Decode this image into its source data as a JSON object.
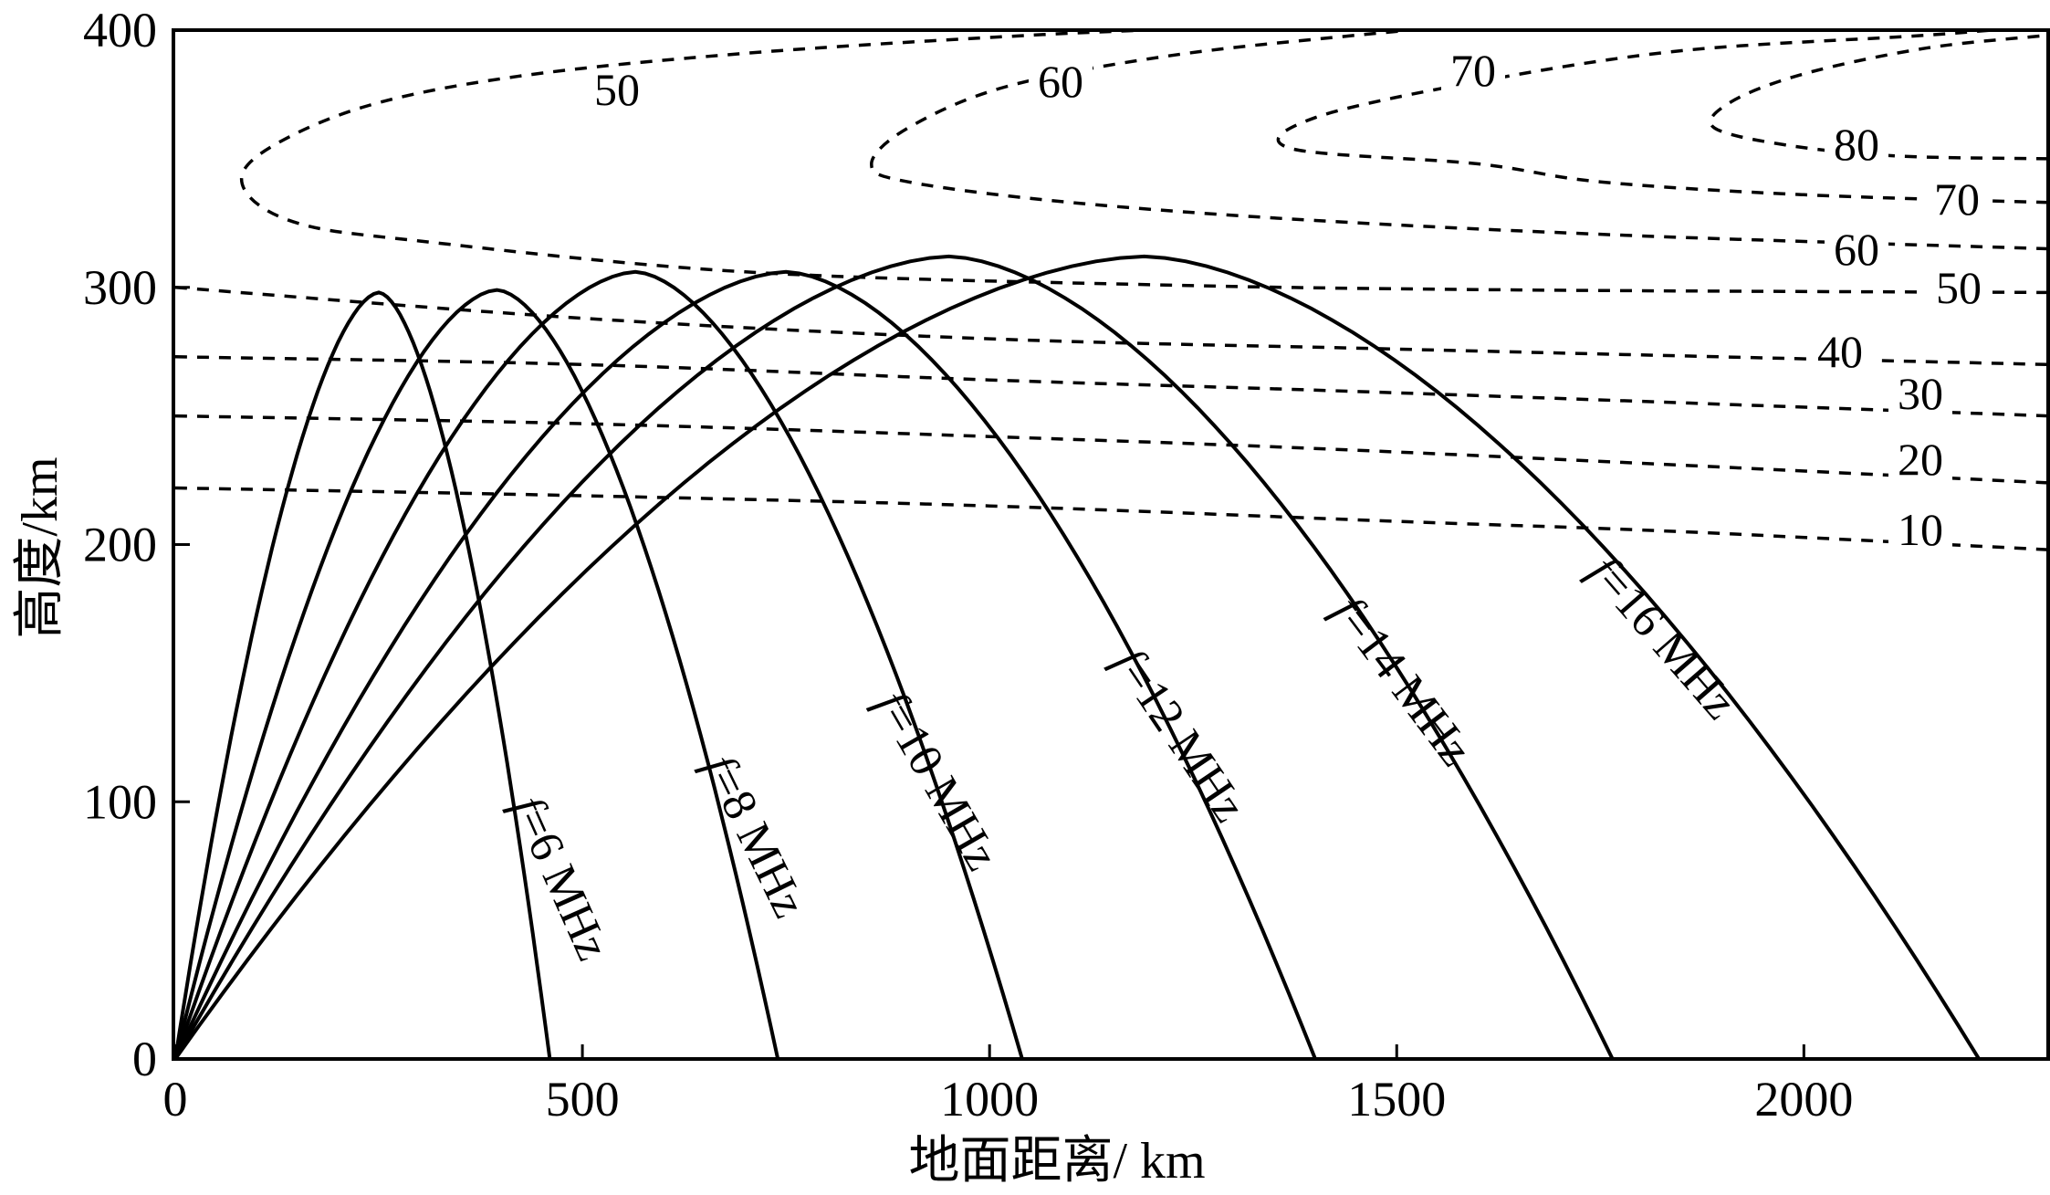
{
  "chart_data": {
    "type": "line",
    "xlabel": "地面距离/ km",
    "ylabel": "高度/km",
    "xlim": [
      0,
      2300
    ],
    "ylim": [
      0,
      400
    ],
    "x_ticks": [
      0,
      500,
      1000,
      1500,
      2000
    ],
    "y_ticks": [
      0,
      100,
      200,
      300,
      400
    ],
    "ray_series": [
      {
        "name": "f=6 MHz",
        "f_symbol": "f",
        "f_value": "=6 MHz",
        "peak_x": 250,
        "peak_height": 298,
        "landing_x": 460
      },
      {
        "name": "f=8 MHz",
        "f_symbol": "f",
        "f_value": "=8 MHz",
        "peak_x": 395,
        "peak_height": 299,
        "landing_x": 740
      },
      {
        "name": "f=10 MHz",
        "f_symbol": "f",
        "f_value": "=10 MHz",
        "peak_x": 565,
        "peak_height": 306,
        "landing_x": 1040
      },
      {
        "name": "f=12 MHz",
        "f_symbol": "f",
        "f_value": "=12 MHz",
        "peak_x": 750,
        "peak_height": 306,
        "landing_x": 1400
      },
      {
        "name": "f=14 MHz",
        "f_symbol": "f",
        "f_value": "=14 MHz",
        "peak_x": 950,
        "peak_height": 312,
        "landing_x": 1765
      },
      {
        "name": "f=16 MHz",
        "f_symbol": "f",
        "f_value": "=16 MHz",
        "peak_x": 1190,
        "peak_height": 312,
        "landing_x": 2215
      }
    ],
    "contour_series": [
      {
        "label": "10",
        "points": [
          [
            0,
            222
          ],
          [
            500,
            219
          ],
          [
            1000,
            215
          ],
          [
            1500,
            209
          ],
          [
            1850,
            205
          ],
          [
            2300,
            198
          ]
        ]
      },
      {
        "label": "20",
        "points": [
          [
            0,
            250
          ],
          [
            500,
            247
          ],
          [
            1000,
            242
          ],
          [
            1500,
            236
          ],
          [
            2300,
            224
          ]
        ]
      },
      {
        "label": "30",
        "points": [
          [
            0,
            273
          ],
          [
            500,
            270
          ],
          [
            1000,
            264
          ],
          [
            1500,
            259
          ],
          [
            2300,
            250
          ]
        ]
      },
      {
        "label": "40",
        "points": [
          [
            0,
            300
          ],
          [
            500,
            288
          ],
          [
            1000,
            280
          ],
          [
            1500,
            276
          ],
          [
            2300,
            270
          ]
        ]
      },
      {
        "label": "50",
        "points": [
          [
            2300,
            298
          ],
          [
            1650,
            299
          ],
          [
            1200,
            301
          ],
          [
            700,
            306
          ],
          [
            300,
            318
          ],
          [
            150,
            325
          ],
          [
            85,
            338
          ],
          [
            105,
            352
          ],
          [
            230,
            370
          ],
          [
            420,
            382
          ],
          [
            700,
            391
          ],
          [
            1050,
            398
          ],
          [
            1280,
            401
          ]
        ]
      },
      {
        "label": "60",
        "points": [
          [
            2300,
            315
          ],
          [
            1800,
            320
          ],
          [
            1400,
            326
          ],
          [
            1100,
            333
          ],
          [
            900,
            341
          ],
          [
            855,
            348
          ],
          [
            900,
            362
          ],
          [
            1020,
            378
          ],
          [
            1220,
            390
          ],
          [
            1450,
            398
          ],
          [
            1700,
            405
          ]
        ]
      },
      {
        "label": "70",
        "points": [
          [
            2300,
            333
          ],
          [
            2000,
            336
          ],
          [
            1750,
            341
          ],
          [
            1600,
            348
          ],
          [
            1370,
            354
          ],
          [
            1400,
            366
          ],
          [
            1600,
            380
          ],
          [
            1850,
            392
          ],
          [
            2150,
            398
          ],
          [
            2300,
            402
          ]
        ]
      },
      {
        "label": "80",
        "points": [
          [
            2300,
            350
          ],
          [
            2120,
            351
          ],
          [
            1985,
            355
          ],
          [
            1890,
            362
          ],
          [
            1910,
            372
          ],
          [
            2000,
            383
          ],
          [
            2150,
            393
          ],
          [
            2300,
            398
          ]
        ]
      }
    ]
  }
}
